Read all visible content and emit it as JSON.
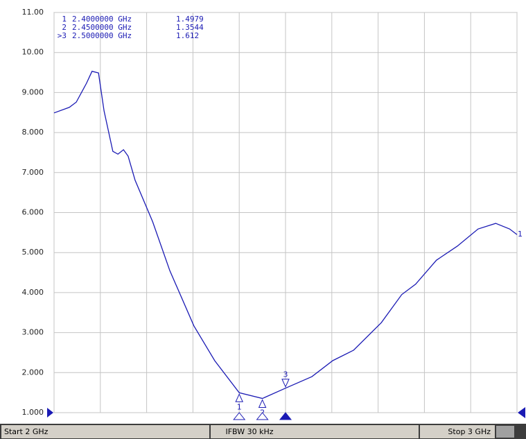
{
  "chart_data": {
    "type": "line",
    "xlim": [
      2,
      3
    ],
    "ylim": [
      1,
      11
    ],
    "xticks": [
      2,
      2.1,
      2.2,
      2.3,
      2.4,
      2.5,
      2.6,
      2.7,
      2.8,
      2.9,
      3
    ],
    "yticks": [
      {
        "value": 11,
        "label": "11.00"
      },
      {
        "value": 10,
        "label": "10.00"
      },
      {
        "value": 9,
        "label": "9.000"
      },
      {
        "value": 8,
        "label": "8.000"
      },
      {
        "value": 7,
        "label": "7.000"
      },
      {
        "value": 6,
        "label": "6.000"
      },
      {
        "value": 5,
        "label": "5.000"
      },
      {
        "value": 4,
        "label": "4.000"
      },
      {
        "value": 3,
        "label": "3.000"
      },
      {
        "value": 2,
        "label": "2.000"
      },
      {
        "value": 1,
        "label": "1.000"
      }
    ],
    "grid": true,
    "x": [
      2.0,
      2.033,
      2.048,
      2.07,
      2.082,
      2.096,
      2.108,
      2.127,
      2.138,
      2.15,
      2.16,
      2.175,
      2.213,
      2.25,
      2.302,
      2.347,
      2.4,
      2.45,
      2.5,
      2.557,
      2.602,
      2.647,
      2.707,
      2.751,
      2.781,
      2.826,
      2.871,
      2.916,
      2.954,
      2.984,
      3.0
    ],
    "series": [
      {
        "name": "1",
        "color": "#1a1ab4",
        "values": [
          8.49,
          8.63,
          8.76,
          9.23,
          9.53,
          9.49,
          8.54,
          7.53,
          7.46,
          7.57,
          7.41,
          6.81,
          5.77,
          4.55,
          3.17,
          2.3,
          1.4979,
          1.3544,
          1.612,
          1.9,
          2.3,
          2.56,
          3.25,
          3.95,
          4.21,
          4.81,
          5.16,
          5.59,
          5.73,
          5.59,
          5.45
        ]
      }
    ],
    "markers": [
      {
        "label": "1",
        "flag": "1",
        "x": {
          "value": 2.4,
          "label": "2.4000000 GHz"
        },
        "value": 1.4979
      },
      {
        "label": "2",
        "flag": "2",
        "x": {
          "value": 2.45,
          "label": "2.4500000 GHz"
        },
        "value": 1.3544
      },
      {
        "label": ">3",
        "flag": "3",
        "x": {
          "value": 2.5,
          "label": "2.5000000 GHz"
        },
        "value": 1.612
      }
    ],
    "status": {
      "start": "Start 2 GHz",
      "ifbw": "IFBW 30 kHz",
      "stop": "Stop 3 GHz"
    }
  }
}
